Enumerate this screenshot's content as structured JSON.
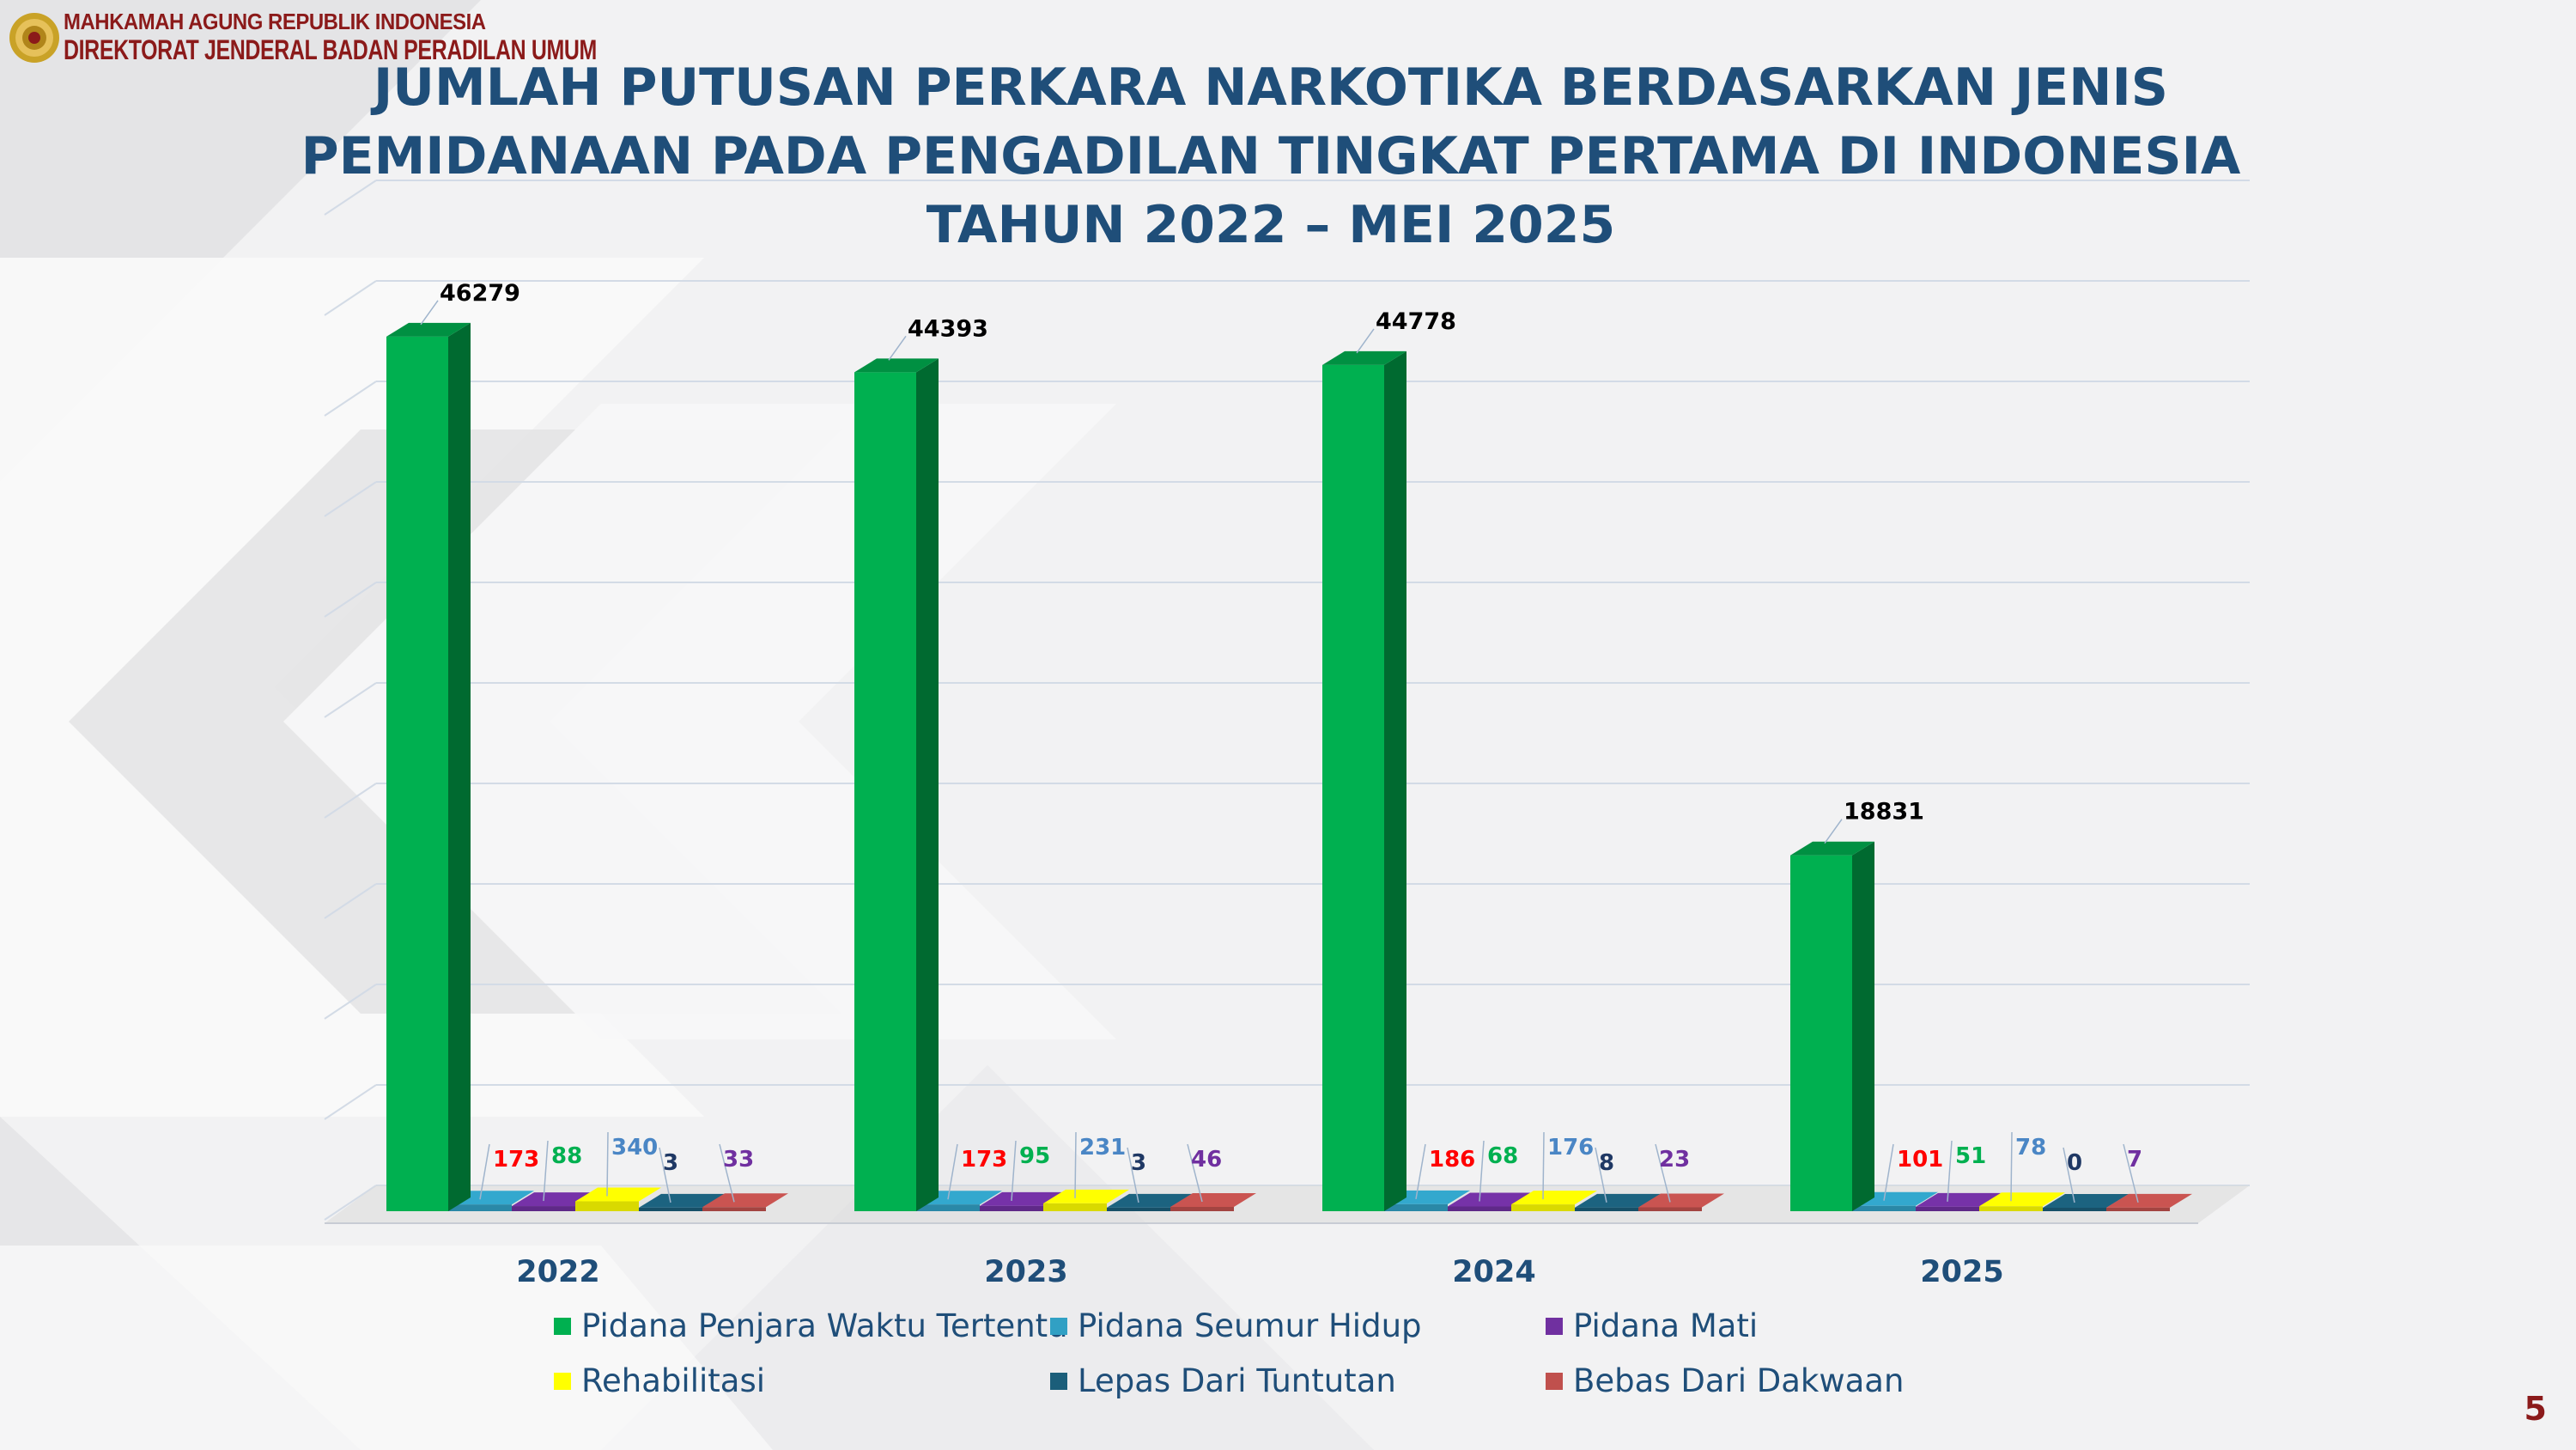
{
  "header": {
    "institution_line1": "MAHKAMAH AGUNG REPUBLIK INDONESIA",
    "institution_line2": "DIREKTORAT JENDERAL BADAN PERADILAN UMUM"
  },
  "title_lines": [
    "JUMLAH PUTUSAN PERKARA NARKOTIKA BERDASARKAN JENIS",
    "PEMIDANAAN PADA PENGADILAN TINGKAT PERTAMA DI INDONESIA",
    "TAHUN 2022 – MEI 2025"
  ],
  "page_number": "5",
  "colors": {
    "title": "#1f4e79",
    "institution": "#8b1a1a"
  },
  "chart_data": {
    "type": "bar",
    "style": "3d-clustered-column",
    "categories": [
      "2022",
      "2023",
      "2024",
      "2025"
    ],
    "series": [
      {
        "name": "Pidana Penjara Waktu Tertentu",
        "color": "#00b050",
        "label_color": "#000000",
        "values": [
          46279,
          44393,
          44778,
          18831
        ]
      },
      {
        "name": "Pidana Seumur Hidup",
        "color": "#31a0c4",
        "label_color": "#ff0000",
        "values": [
          173,
          173,
          186,
          101
        ]
      },
      {
        "name": "Pidana Mati",
        "color": "#7030a0",
        "label_color": "#00b050",
        "values": [
          88,
          95,
          68,
          51
        ]
      },
      {
        "name": "Rehabilitasi",
        "color": "#ffff00",
        "label_color": "#4a86c5",
        "values": [
          340,
          231,
          176,
          78
        ]
      },
      {
        "name": "Lepas Dari Tuntutan",
        "color": "#1b5e7a",
        "label_color": "#1f3864",
        "values": [
          3,
          3,
          8,
          0
        ]
      },
      {
        "name": "Bebas Dari Dakwaan",
        "color": "#c0504d",
        "label_color": "#7030a0",
        "values": [
          33,
          46,
          23,
          7
        ]
      }
    ],
    "ylim": [
      0,
      50000
    ],
    "grid": true,
    "legend_position": "bottom"
  }
}
